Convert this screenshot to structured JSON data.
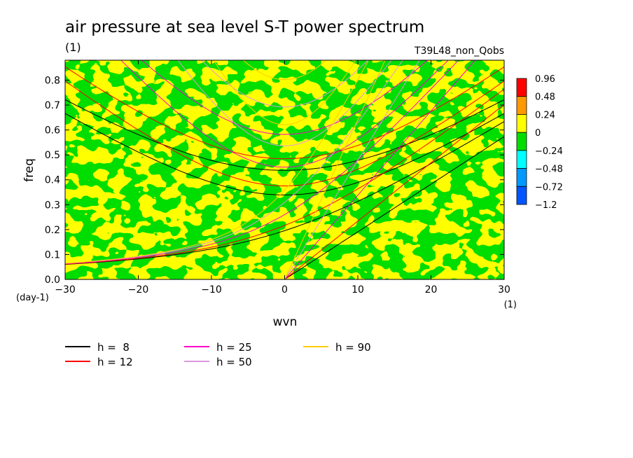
{
  "chart_data": {
    "type": "heatmap",
    "title": "air pressure at sea level S-T power spectrum",
    "subtitle": "(1)",
    "run_label": "T39L48_non_Qobs",
    "xlabel": "wvn",
    "ylabel": "freq",
    "x_unit": "(1)",
    "y_unit": "(day-1)",
    "xlim": [
      -30,
      30
    ],
    "ylim": [
      0.0,
      0.88
    ],
    "x_ticks": [
      -30,
      -20,
      -10,
      0,
      10,
      20,
      30
    ],
    "y_ticks": [
      0.0,
      0.1,
      0.2,
      0.3,
      0.4,
      0.5,
      0.6,
      0.7,
      0.8
    ],
    "x_tick_labels": [
      "−30",
      "−20",
      "−10",
      "0",
      "10",
      "20",
      "30"
    ],
    "y_tick_labels": [
      "0.0",
      "0.1",
      "0.2",
      "0.3",
      "0.4",
      "0.5",
      "0.6",
      "0.7",
      "0.8"
    ],
    "colorbar": {
      "labels": [
        "0.96",
        "0.48",
        "0.24",
        "0",
        "−0.24",
        "−0.48",
        "−0.72",
        "−1.2"
      ],
      "colors": [
        "#ff0000",
        "#ff9900",
        "#ffff00",
        "#00dd00",
        "#00ffff",
        "#0099ff",
        "#0055ff"
      ]
    },
    "field_note_colors": {
      "dominant_positive": "#ffff00",
      "dominant_negative": "#00dd00"
    },
    "dispersion_curves": [
      {
        "name": "h =  8",
        "h": 8,
        "color": "#000000"
      },
      {
        "name": "h = 12",
        "h": 12,
        "color": "#ff0000"
      },
      {
        "name": "h = 25",
        "h": 25,
        "color": "#ff00cc"
      },
      {
        "name": "h = 50",
        "h": 50,
        "color": "#dd99dd"
      },
      {
        "name": "h = 90",
        "h": 90,
        "color": "#ffcc00"
      }
    ]
  }
}
